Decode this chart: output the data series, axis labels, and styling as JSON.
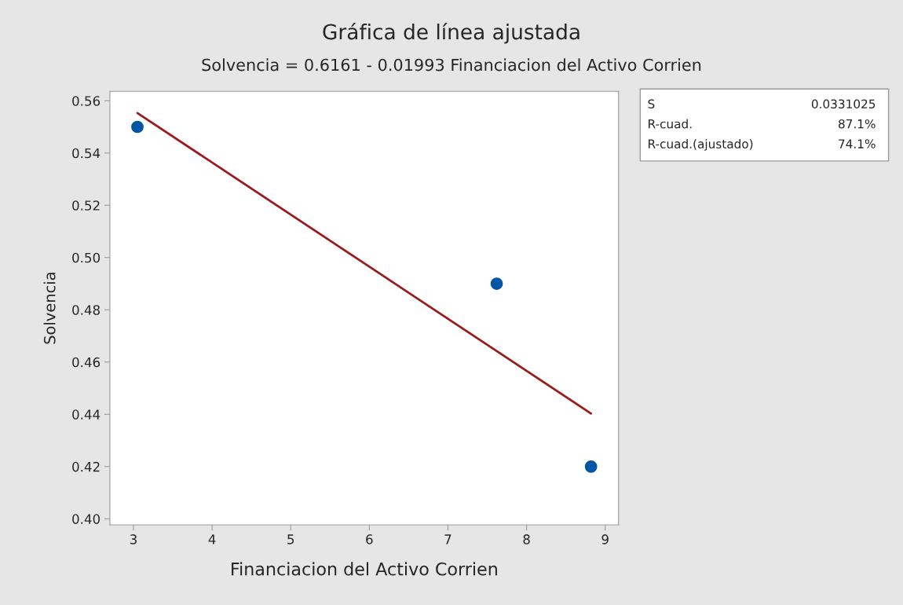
{
  "chart_data": {
    "type": "scatter",
    "title": "Gráfica de línea ajustada",
    "subtitle": "Solvencia = 0.6161 - 0.01993 Financiacion del Activo Corrien",
    "xlabel": "Financiacion del Activo Corrien",
    "ylabel": "Solvencia",
    "series": [
      {
        "color": "#0055a5",
        "x": [
          3.05,
          7.62,
          8.82
        ],
        "values": [
          0.55,
          0.49,
          0.42
        ],
        "marker": "circle"
      },
      {
        "type": "line",
        "color": "#9b1b1b",
        "x": [
          3.05,
          8.82
        ],
        "values": [
          0.5553,
          0.4403
        ],
        "line_style": "solid"
      }
    ],
    "xlim": [
      2.7,
      9.17
    ],
    "xticks": [
      3,
      4,
      5,
      6,
      7,
      8,
      9
    ],
    "ylim": [
      0.3977,
      0.5636
    ],
    "yticks": [
      {
        "value": 0.4,
        "label": "0.40"
      },
      {
        "value": 0.42,
        "label": "0.42"
      },
      {
        "value": 0.44,
        "label": "0.44"
      },
      {
        "value": 0.46,
        "label": "0.46"
      },
      {
        "value": 0.48,
        "label": "0.48"
      },
      {
        "value": 0.5,
        "label": "0.50"
      },
      {
        "value": 0.52,
        "label": "0.52"
      },
      {
        "value": 0.54,
        "label": "0.54"
      },
      {
        "value": 0.56,
        "label": "0.56"
      }
    ],
    "grid": false,
    "legend": false,
    "annotations": [
      "S",
      "0.0331025",
      "R-cuad.",
      "87.1%",
      "R-cuad.(ajustado)",
      "74.1%"
    ]
  }
}
